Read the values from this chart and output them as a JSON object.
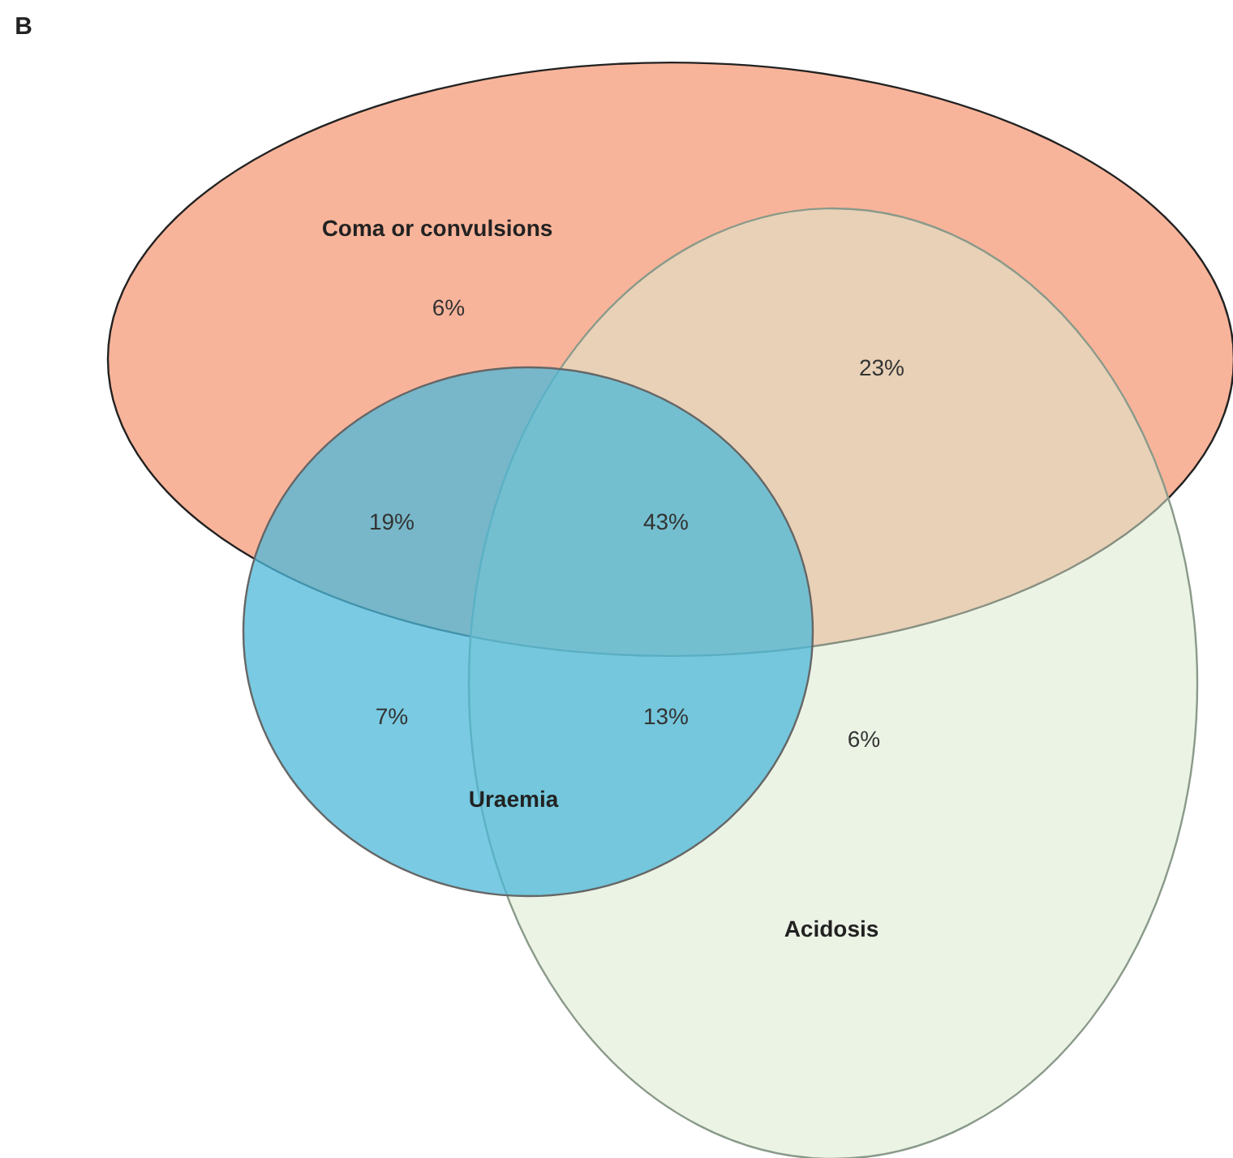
{
  "chart_data": {
    "type": "other",
    "title": "B",
    "annotations": [
      "Coma or convulsions",
      "Acidosis",
      "Uraemia"
    ],
    "categories": [
      null,
      null,
      null,
      null,
      null,
      null,
      null
    ],
    "values": [
      6,
      23,
      19,
      43,
      7,
      13,
      6
    ],
    "value_labels": [
      "6%",
      "23%",
      "19%",
      "43%",
      "7%",
      "13%",
      "6%"
    ]
  }
}
